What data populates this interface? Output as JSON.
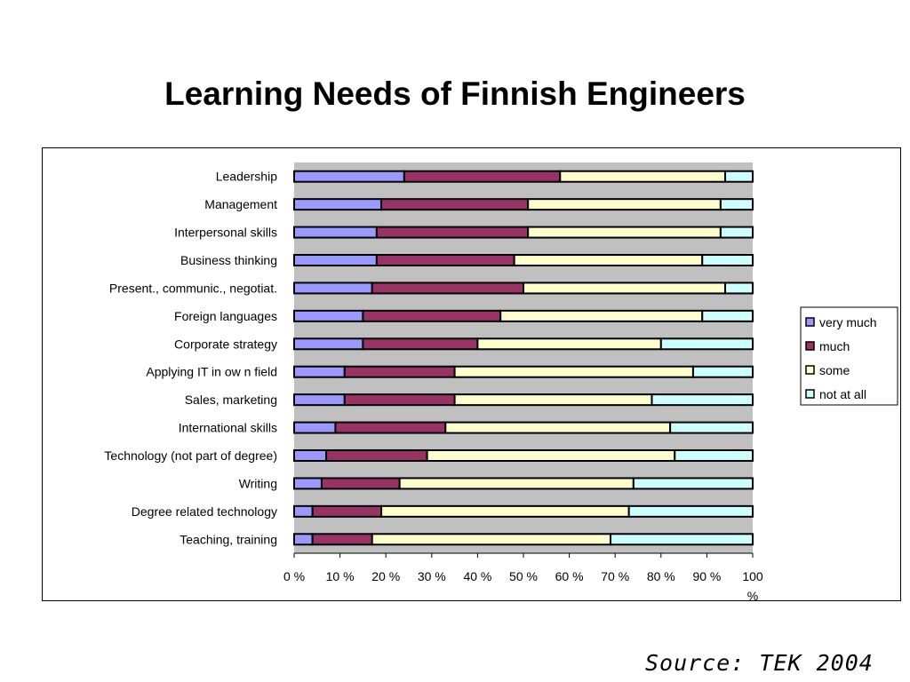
{
  "slide": {
    "title": "Learning Needs of Finnish Engineers",
    "source": "Source: TEK 2004"
  },
  "chart_data": {
    "type": "bar",
    "orientation": "horizontal",
    "stacked": "percent",
    "categories": [
      "Leadership",
      "Management",
      "Interpersonal skills",
      "Business thinking",
      "Present., communic., negotiat.",
      "Foreign languages",
      "Corporate strategy",
      "Applying IT in ow n field",
      "Sales, marketing",
      "International skills",
      "Technology (not part of degree)",
      "Writing",
      "Degree related technology",
      "Teaching, training"
    ],
    "series": [
      {
        "name": "very much",
        "color": "#9999ff",
        "values": [
          24,
          19,
          18,
          18,
          17,
          15,
          15,
          11,
          11,
          9,
          7,
          6,
          4,
          4
        ]
      },
      {
        "name": "much",
        "color": "#993366",
        "values": [
          34,
          32,
          33,
          30,
          33,
          30,
          25,
          24,
          24,
          24,
          22,
          17,
          15,
          13
        ]
      },
      {
        "name": "some",
        "color": "#ffffcc",
        "values": [
          36,
          42,
          42,
          41,
          44,
          44,
          40,
          52,
          43,
          49,
          54,
          51,
          54,
          52
        ]
      },
      {
        "name": "not at all",
        "color": "#ccffff",
        "values": [
          6,
          7,
          7,
          11,
          6,
          11,
          20,
          13,
          22,
          18,
          17,
          26,
          27,
          31
        ]
      }
    ],
    "xlim": [
      0,
      100
    ],
    "x_ticks": [
      "0 %",
      "10 %",
      "20 %",
      "30 %",
      "40 %",
      "50 %",
      "60 %",
      "70 %",
      "80 %",
      "90 %",
      "100"
    ],
    "x_tick_suffix_last": "%",
    "plot_background": "#c0c0c0",
    "grid": false,
    "legend_position": "right"
  }
}
